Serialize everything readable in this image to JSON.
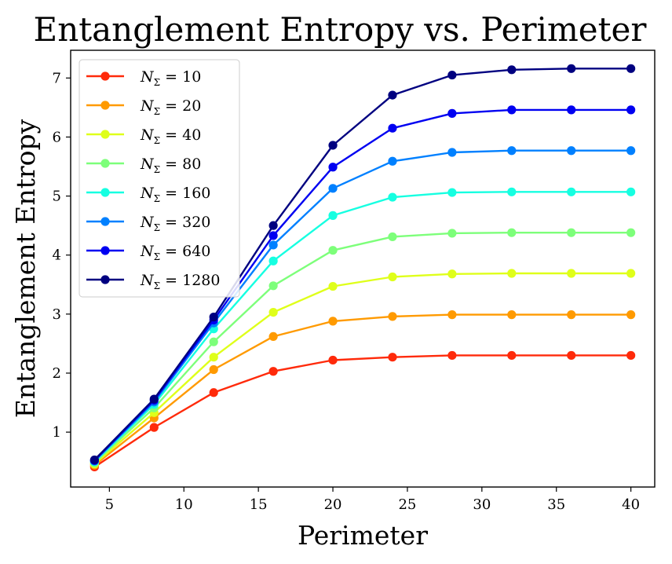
{
  "chart_data": {
    "type": "line",
    "title": "Entanglement Entropy vs. Perimeter",
    "xlabel": "Perimeter",
    "ylabel": "Entanglement Entropy",
    "xlim": [
      2.4,
      41.6
    ],
    "ylim": [
      0.07,
      7.47
    ],
    "x_ticks": [
      5,
      10,
      15,
      20,
      25,
      30,
      35,
      40
    ],
    "y_ticks": [
      1,
      2,
      3,
      4,
      5,
      6,
      7
    ],
    "grid": false,
    "legend_position": "upper-left",
    "x": [
      4,
      8,
      12,
      16,
      20,
      24,
      28,
      32,
      36,
      40
    ],
    "series": [
      {
        "name": "N_Σ = 10",
        "legend_symbol": "N",
        "legend_subscript": "Σ",
        "legend_value": " = 10",
        "color": "#ff2a0a",
        "values": [
          0.41,
          1.08,
          1.67,
          2.03,
          2.22,
          2.27,
          2.3,
          2.3,
          2.3,
          2.3
        ]
      },
      {
        "name": "N_Σ = 20",
        "legend_symbol": "N",
        "legend_subscript": "Σ",
        "legend_value": " = 20",
        "color": "#ff9a00",
        "values": [
          0.44,
          1.24,
          2.06,
          2.62,
          2.88,
          2.96,
          2.99,
          2.99,
          2.99,
          2.99
        ]
      },
      {
        "name": "N_Σ = 40",
        "legend_symbol": "N",
        "legend_subscript": "Σ",
        "legend_value": " = 40",
        "color": "#dfff1a",
        "values": [
          0.46,
          1.33,
          2.27,
          3.03,
          3.47,
          3.63,
          3.68,
          3.69,
          3.69,
          3.69
        ]
      },
      {
        "name": "N_Σ = 80",
        "legend_symbol": "N",
        "legend_subscript": "Σ",
        "legend_value": " = 80",
        "color": "#7dff7a",
        "values": [
          0.48,
          1.41,
          2.53,
          3.48,
          4.08,
          4.31,
          4.37,
          4.38,
          4.38,
          4.38
        ]
      },
      {
        "name": "N_Σ = 160",
        "legend_symbol": "N",
        "legend_subscript": "Σ",
        "legend_value": " = 160",
        "color": "#16ffe1",
        "values": [
          0.5,
          1.47,
          2.75,
          3.9,
          4.67,
          4.98,
          5.06,
          5.07,
          5.07,
          5.07
        ]
      },
      {
        "name": "N_Σ = 320",
        "legend_symbol": "N",
        "legend_subscript": "Σ",
        "legend_value": " = 320",
        "color": "#0080ff",
        "values": [
          0.51,
          1.51,
          2.85,
          4.17,
          5.13,
          5.59,
          5.74,
          5.77,
          5.77,
          5.77
        ]
      },
      {
        "name": "N_Σ = 640",
        "legend_symbol": "N",
        "legend_subscript": "Σ",
        "legend_value": " = 640",
        "color": "#0000f1",
        "values": [
          0.52,
          1.54,
          2.9,
          4.33,
          5.49,
          6.15,
          6.4,
          6.46,
          6.46,
          6.46
        ]
      },
      {
        "name": "N_Σ = 1280",
        "legend_symbol": "N",
        "legend_subscript": "Σ",
        "legend_value": " = 1280",
        "color": "#000080",
        "values": [
          0.53,
          1.56,
          2.95,
          4.5,
          5.86,
          6.71,
          7.05,
          7.14,
          7.16,
          7.16
        ]
      }
    ]
  }
}
